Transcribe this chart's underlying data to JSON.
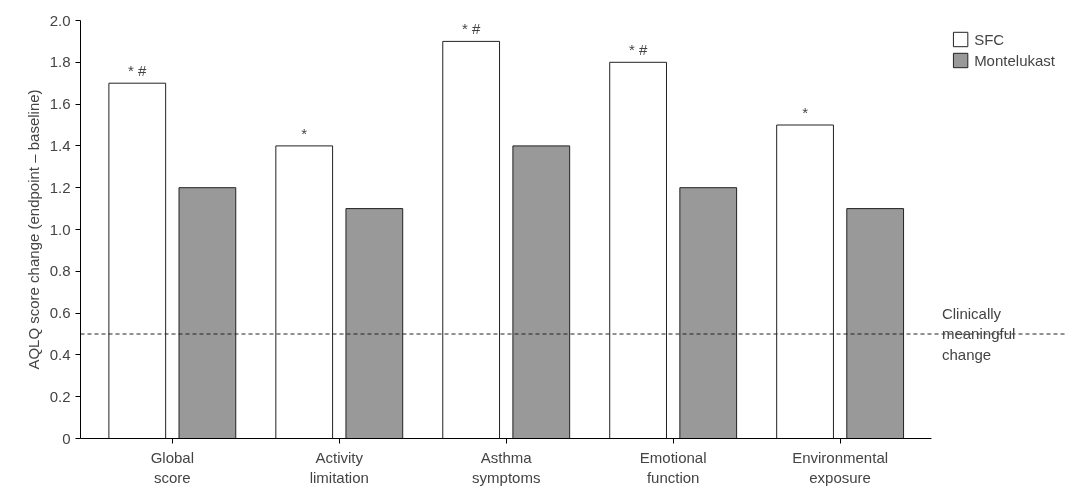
{
  "chart_data": {
    "type": "bar",
    "ylabel": "AQLQ score change (endpoint – baseline)",
    "categories": [
      "Global score",
      "Activity limitation",
      "Asthma symptoms",
      "Emotional function",
      "Environmental exposure"
    ],
    "series": [
      {
        "name": "SFC",
        "color": "#ffffff",
        "values": [
          1.7,
          1.4,
          1.9,
          1.8,
          1.5
        ]
      },
      {
        "name": "Montelukast",
        "color": "#999999",
        "values": [
          1.2,
          1.1,
          1.4,
          1.2,
          1.1
        ]
      }
    ],
    "ylim": [
      0,
      2.0
    ],
    "yticks": [
      0,
      0.2,
      0.4,
      0.6,
      0.8,
      {
        "value": 1.0,
        "label": "1.0"
      },
      1.2,
      1.4,
      1.6,
      1.8,
      {
        "value": 2.0,
        "label": "2.0"
      }
    ],
    "ref_lines": [
      {
        "axis": "y",
        "value": 0.5,
        "label": "Clinically meaningful change",
        "line_style": "dashed"
      }
    ],
    "annotations": [
      "* #",
      "*",
      "* #",
      "* #",
      "*"
    ],
    "legend": "top right",
    "grid": false
  }
}
